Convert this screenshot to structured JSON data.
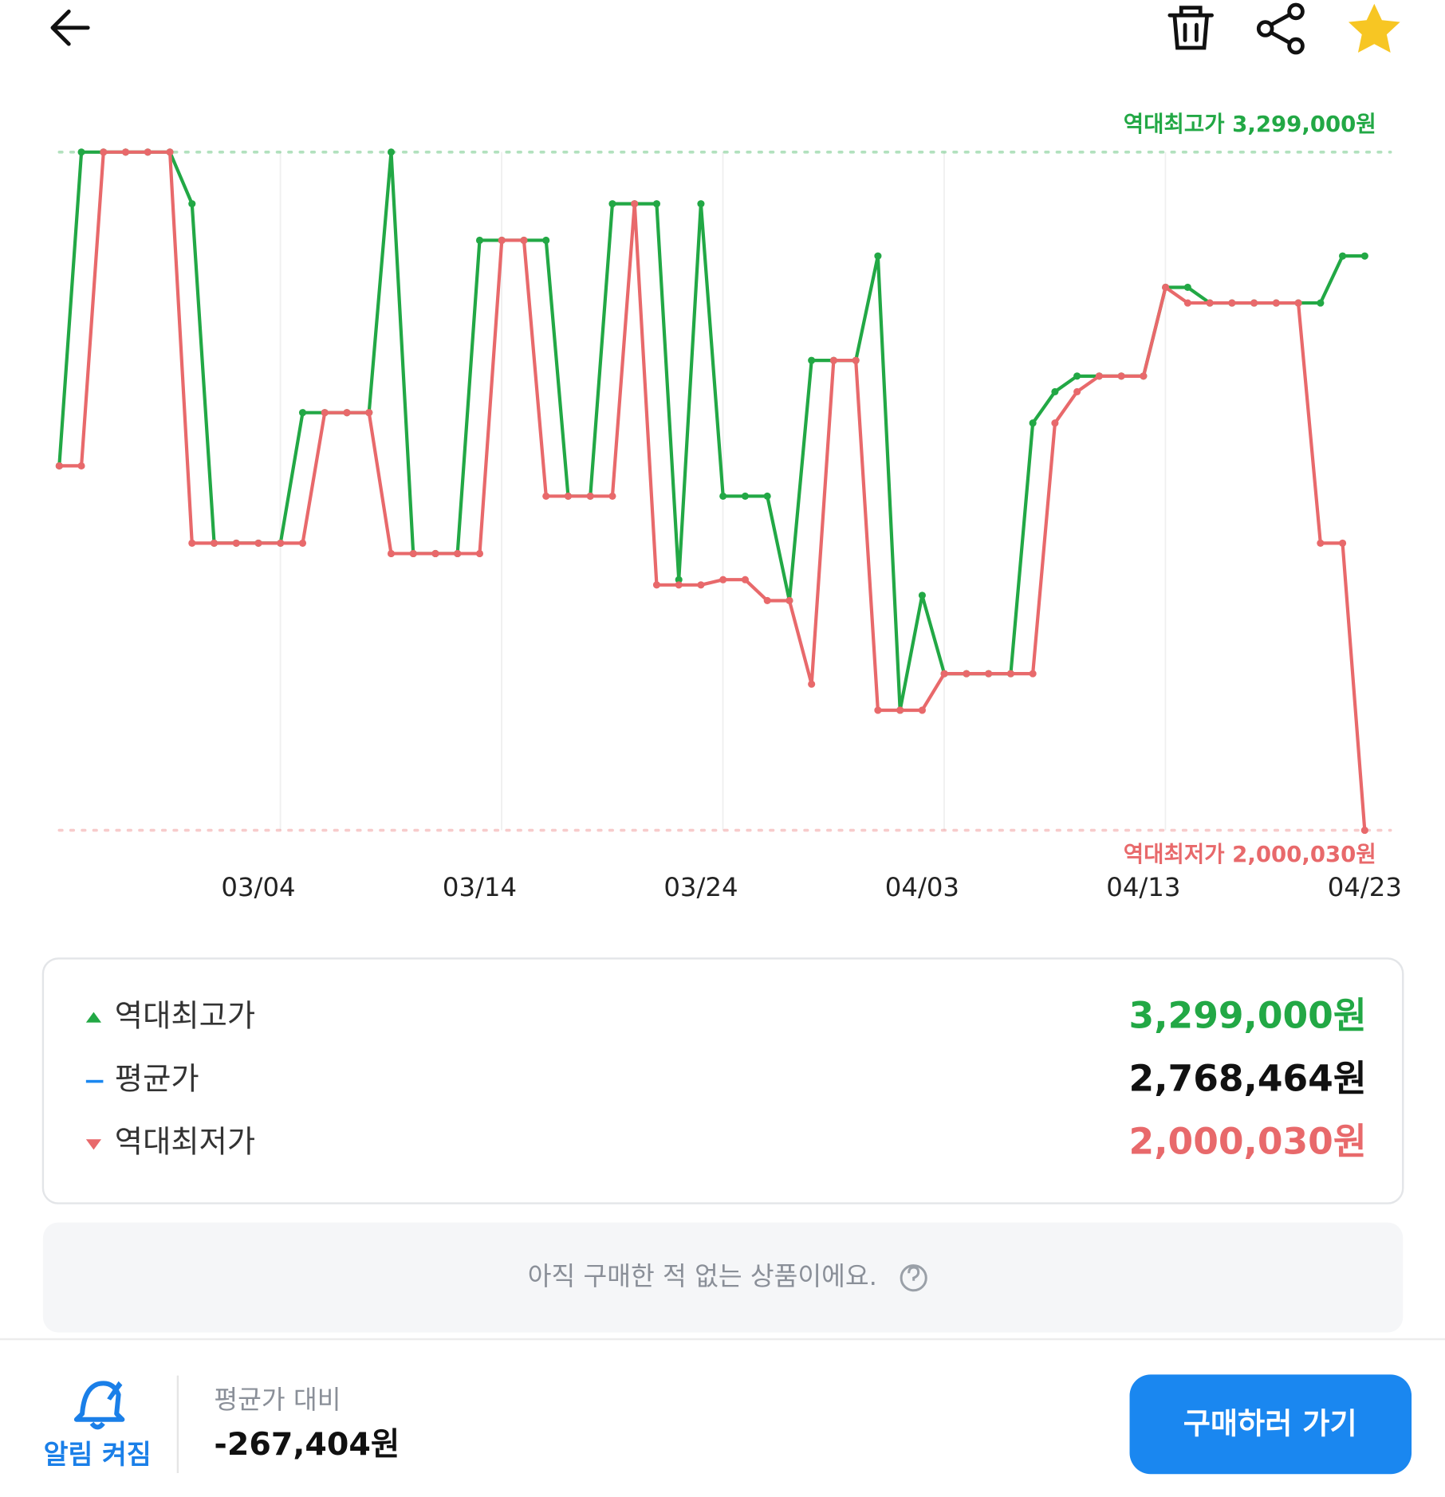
{
  "chart_data": {
    "type": "line",
    "categories": [
      null,
      null,
      null,
      null,
      null,
      null,
      null,
      null,
      null,
      "03/04",
      null,
      null,
      null,
      null,
      null,
      null,
      null,
      null,
      null,
      "03/14",
      null,
      null,
      null,
      null,
      null,
      null,
      null,
      null,
      null,
      "03/24",
      null,
      null,
      null,
      null,
      null,
      null,
      null,
      null,
      null,
      "04/03",
      null,
      null,
      null,
      null,
      null,
      null,
      null,
      null,
      null,
      "04/13",
      null,
      null,
      null,
      null,
      null,
      null,
      null,
      null,
      null,
      "04/23"
    ],
    "series": [
      {
        "color": "#22a845",
        "values": [
          2698000,
          3299000,
          3299000,
          3299000,
          3299000,
          3299000,
          3200000,
          2550000,
          2550000,
          2550000,
          2550000,
          2800000,
          2800000,
          2800000,
          2800000,
          3299000,
          2530000,
          2530000,
          2530000,
          3130000,
          3130000,
          3130000,
          3130000,
          2640000,
          2640000,
          3200000,
          3200000,
          3200000,
          2480000,
          3200000,
          2640000,
          2640000,
          2640000,
          2440000,
          2900000,
          2900000,
          2900000,
          3100000,
          2230000,
          2450000,
          2300000,
          2300000,
          2300000,
          2300000,
          2780000,
          2840000,
          2870000,
          2870000,
          2870000,
          2870000,
          3040000,
          3040000,
          3010000,
          3010000,
          3010000,
          3010000,
          3010000,
          3010000,
          3100000,
          3100000
        ]
      },
      {
        "color": "#e8696b",
        "values": [
          2698000,
          2698000,
          3299000,
          3299000,
          3299000,
          3299000,
          2550000,
          2550000,
          2550000,
          2550000,
          2550000,
          2550000,
          2800000,
          2800000,
          2800000,
          2530000,
          2530000,
          2530000,
          2530000,
          2530000,
          3130000,
          3130000,
          2640000,
          2640000,
          2640000,
          2640000,
          3200000,
          2470000,
          2470000,
          2470000,
          2480000,
          2480000,
          2440000,
          2440000,
          2280000,
          2900000,
          2900000,
          2230000,
          2230000,
          2230000,
          2300000,
          2300000,
          2300000,
          2300000,
          2300000,
          2780000,
          2840000,
          2870000,
          2870000,
          2870000,
          3040000,
          3010000,
          3010000,
          3010000,
          3010000,
          3010000,
          3010000,
          2550000,
          2550000,
          2000030
        ]
      }
    ],
    "ylim": [
      2000030,
      3299000
    ],
    "reference_lines": [
      {
        "value": 3299000,
        "label": "역대최고가 3,299,000원",
        "color": "#22a845"
      },
      {
        "value": 2000030,
        "label": "역대최저가 2,000,030원",
        "color": "#e8696b"
      }
    ]
  },
  "summary": [
    {
      "label": "역대최고가",
      "value": "3,299,000원"
    },
    {
      "label": "평균가",
      "value": "2,768,464원"
    },
    {
      "label": "역대최저가",
      "value": "2,000,030원"
    }
  ],
  "notice": "아직 구매한 적 없는 상품이에요.",
  "footer": {
    "alarm": "알림 켜짐",
    "compare_label": "평균가 대비",
    "compare_value": "-267,404원",
    "button": "구매하러 가기"
  }
}
